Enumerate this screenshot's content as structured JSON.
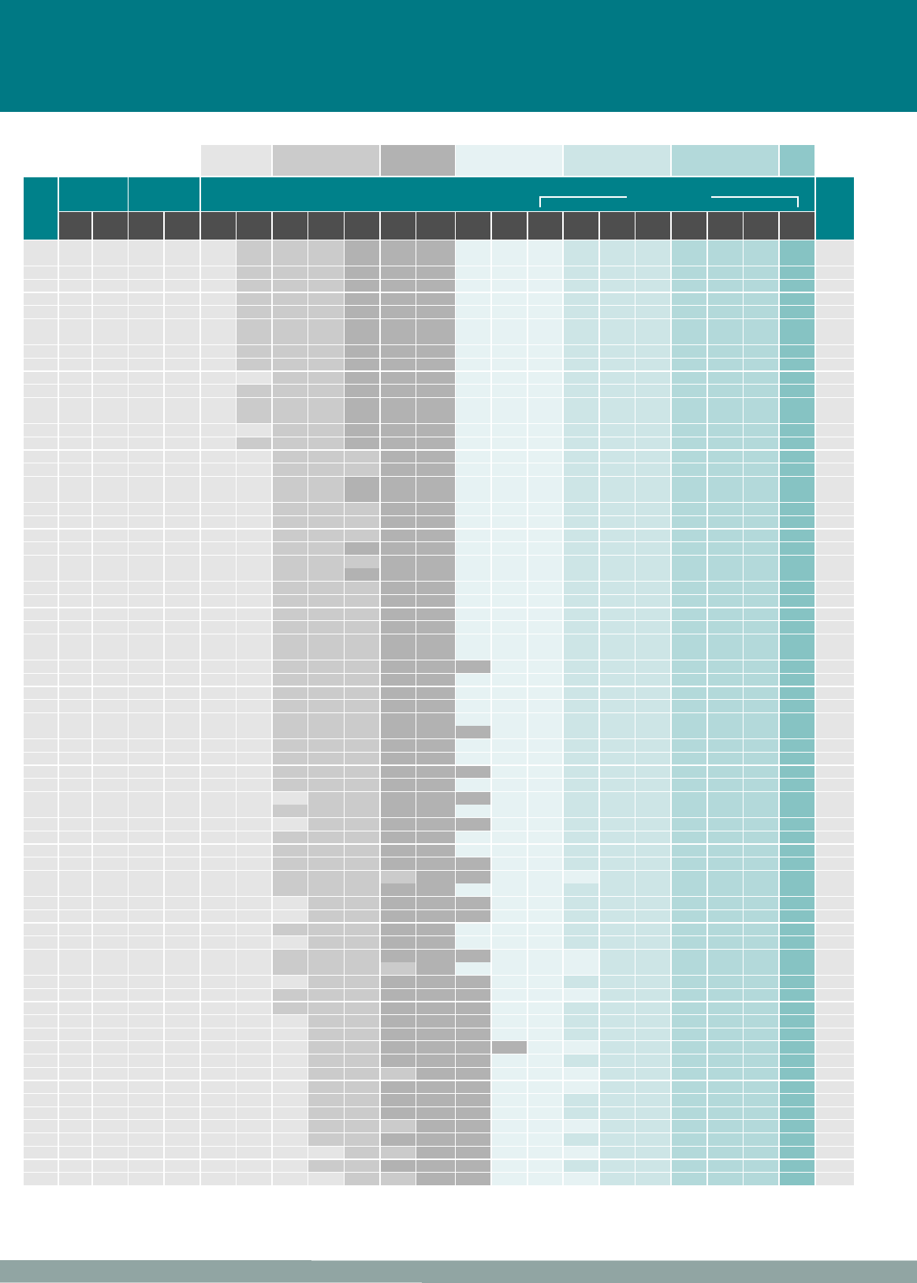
{
  "colors": {
    "banner": "#007984",
    "header_teal": "#00818a",
    "subheader_dark": "#4e4e4e",
    "footer_bar": "#91a5a3",
    "band_accent": "#8fc8c9"
  },
  "palette": {
    "a": "#e5e5e5",
    "b": "#cbcbcb",
    "c": "#b2b2b2",
    "d": "#e6f2f3",
    "e": "#cde5e6",
    "f": "#b3d9da",
    "g": "#86c3c3"
  },
  "legend_bands": [
    "a",
    "b",
    "c",
    "d",
    "e",
    "f",
    "band_accent"
  ],
  "rows": [
    "aaaaaabbbcccdddeeefffga",
    "aaaaaabbbcccdddeeefffga",
    "aaaaaabbbcccdddeeefffga",
    "aaaaaabbbcccdddeeefffga",
    "aaaaaabbbcccdddeeefffga",
    "aaaaaabbbcccdddeeefffga",
    "aaaaaabbbcccdddeeefffga",
    "aaaaaabbbcccdddeeefffga",
    "aaaaaabbbcccdddeeefffga",
    "aaaaaabbbcccdddeeefffga",
    "aaaaaaabbcccdddeeefffga",
    "aaaaaabbbcccdddeeefffga",
    "aaaaaabbbcccdddeeefffga",
    "aaaaaabbbcccdddeeefffga",
    "aaaaaaabbcccdddeeefffga",
    "aaaaaabbbcccdddeeefffga",
    "aaaaaaabbbccdddeeefffga",
    "aaaaaaabbbccdddeeefffga",
    "aaaaaaabbcccdddeeefffga",
    "aaaaaaabbcccdddeeefffga",
    "aaaaaaabbbccdddeeefffga",
    "aaaaaaabbbccdddeeefffga",
    "aaaaaaabbbccdddeeefffga",
    "aaaaaaabbcccdddeeefffga",
    "aaaaaaabbbccdddeeefffga",
    "aaaaaaabbcccdddeeefffga",
    "aaaaaaabbbccdddeeefffga",
    "aaaaaaabbbccdddeeefffga",
    "aaaaaaabbbccdddeeefffga",
    "aaaaaaabbbccdddeeefffga",
    "aaaaaaabbbccdddeeefffga",
    "aaaaaaabbbccdddeeefffga",
    "aaaaaaabbbcccddeeefffga",
    "aaaaaaabbbccdddeeefffga",
    "aaaaaaabbbccdddeeefffga",
    "aaaaaaabbbccdddeeefffga",
    "aaaaaaabbbccdddeeefffga",
    "aaaaaaabbbcccddeeefffga",
    "aaaaaaabbbccdddeeefffga",
    "aaaaaaabbbccdddeeefffga",
    "aaaaaaabbbcccddeeefffga",
    "aaaaaaabbbccdddeeefffga",
    "aaaaaaaabbcccddeeefffga",
    "aaaaaaabbbccdddeeefffga",
    "aaaaaaaabbcccddeeefffga",
    "aaaaaaabbbccdddeeefffga",
    "aaaaaaabbbccdddeeefffga",
    "aaaaaaabbbcccddeeefffga",
    "aaaaaaabbbbccdddeefffga",
    "aaaaaaabbbccdddeeefffga",
    "aaaaaaaabbcccddeeefffga",
    "aaaaaaaabbcccddeeefffga",
    "aaaaaaabbbccdddeeefffga",
    "aaaaaaaabbccdddeeefffga",
    "aaaaaaabbbcccdddeefffga",
    "aaaaaaabbbbcddddeefffga",
    "aaaaaaaabbcccddeeefffga",
    "aaaaaaabbbcccdddeefffga",
    "aaaaaaabbbcccddeeefffga",
    "aaaaaaaabbcccddeeefffga",
    "aaaaaaaabbcccddeeefffga",
    "aaaaaaaabbccccddeefffga",
    "aaaaaaaabbcccddeeefffga",
    "aaaaaaaabbbccdddeefffga",
    "aaaaaaaabbcccdddeefffga",
    "aaaaaaaabbcccddeeefffga",
    "aaaaaaaabbcccddeeefffga",
    "aaaaaaaabbbccdddeefffga",
    "aaaaaaaabbcccddeeefffga",
    "aaaaaaaaabbccdddeefffga",
    "aaaaaaaabbcccddeeefffga",
    "aaaaaaaaabbccdddeefffga"
  ]
}
